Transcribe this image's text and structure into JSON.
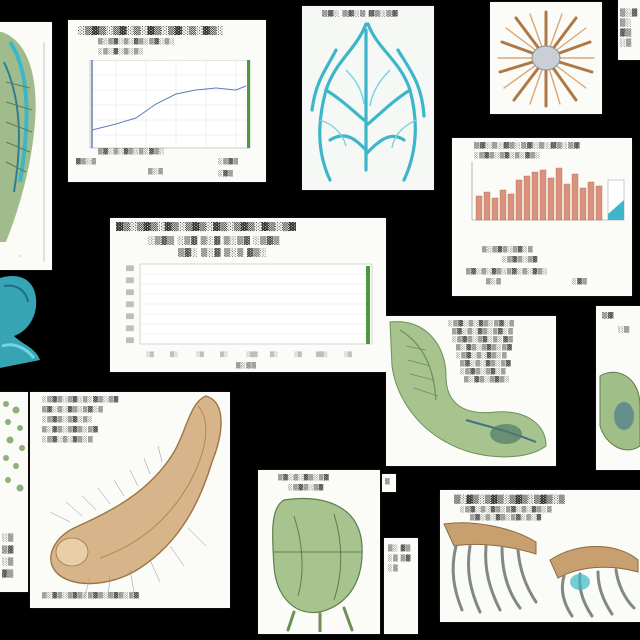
{
  "scene": {
    "description_free": true,
    "background_color": "#000000"
  },
  "palette": {
    "paper": "#fbfbf8",
    "teal_anatomy": "#3cb6c8",
    "sage_anatomy": "#8fb07a",
    "tan_anatomy": "#c8a070",
    "accent_green_bar": "#4c9a3c",
    "chart_blue_line": "#5b7fb8",
    "bar_salmon": "#d9927c"
  },
  "panels": [
    {
      "kind": "anatomy-sage",
      "icon": "leaf-anatomy-icon"
    },
    {
      "kind": "line-chart",
      "icon": "line-chart-icon"
    },
    {
      "kind": "vascular-teal",
      "icon": "vein-network-icon"
    },
    {
      "kind": "radial-specimen",
      "icon": "radial-specimen-icon"
    },
    {
      "kind": "wide-chart",
      "icon": "bar-chart-icon"
    },
    {
      "kind": "bar-histogram",
      "icon": "histogram-icon"
    },
    {
      "kind": "teal-form",
      "icon": "teal-form-icon"
    },
    {
      "kind": "leaf-ear",
      "icon": "leaf-ear-icon"
    },
    {
      "kind": "green-dots",
      "icon": "cell-cluster-icon"
    },
    {
      "kind": "tan-tube",
      "icon": "tube-anatomy-icon"
    },
    {
      "kind": "sage-organ",
      "icon": "organ-icon"
    },
    {
      "kind": "claws",
      "icon": "claw-anatomy-icon"
    }
  ]
}
